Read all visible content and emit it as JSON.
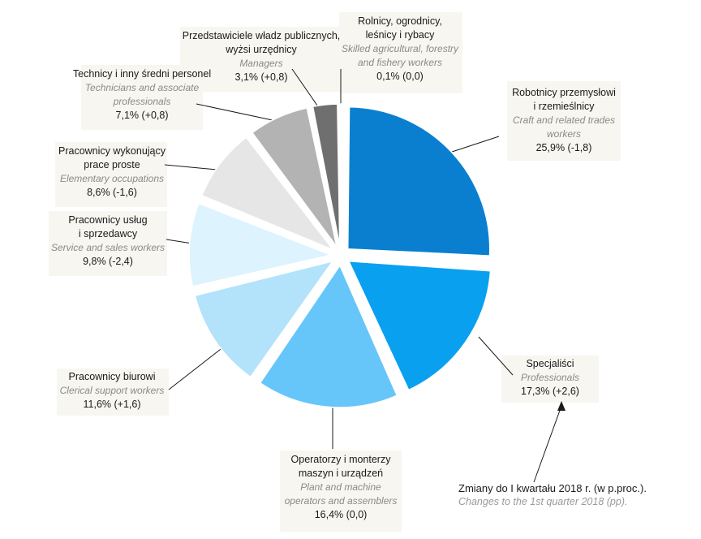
{
  "chart_data": {
    "type": "pie",
    "note": {
      "pl": "Zmiany do I kwartału 2018 r. (w p.proc.).",
      "en": "Changes to the  1st quarter 2018 (pp)."
    },
    "slices": [
      {
        "pl": [
          "Robotnicy przemysłowi",
          "i rzemieślnicy"
        ],
        "en": [
          "Craft and related trades",
          "workers"
        ],
        "value": 25.9,
        "label": "25,9% (-1,8)",
        "color": "#0a7fd0"
      },
      {
        "pl": [
          "Specjaliści"
        ],
        "en": [
          "Professionals"
        ],
        "value": 17.3,
        "label": "17,3% (+2,6)",
        "color": "#0aa0f0"
      },
      {
        "pl": [
          "Operatorzy i monterzy",
          "maszyn i urządzeń"
        ],
        "en": [
          "Plant and machine",
          "operators and assemblers"
        ],
        "value": 16.4,
        "label": "16,4% (0,0)",
        "color": "#66c6fa"
      },
      {
        "pl": [
          "Pracownicy biurowi"
        ],
        "en": [
          "Clerical support workers"
        ],
        "value": 11.6,
        "label": "11,6% (+1,6)",
        "color": "#b3e3fb"
      },
      {
        "pl": [
          "Pracownicy usług",
          "i sprzedawcy"
        ],
        "en": [
          "Service and sales workers"
        ],
        "value": 9.8,
        "label": "9,8% (-2,4)",
        "color": "#ddf3fd"
      },
      {
        "pl": [
          "Pracownicy wykonujący",
          "prace proste"
        ],
        "en": [
          "Elementary occupations"
        ],
        "value": 8.6,
        "label": "8,6% (-1,6)",
        "color": "#e6e6e6"
      },
      {
        "pl": [
          "Technicy i inny średni personel"
        ],
        "en": [
          "Technicians and associate",
          "professionals"
        ],
        "value": 7.1,
        "label": "7,1% (+0,8)",
        "color": "#b3b3b3"
      },
      {
        "pl": [
          "Przedstawiciele władz publicznych,",
          "wyżsi urzędnicy"
        ],
        "en": [
          "Managers"
        ],
        "value": 3.1,
        "label": "3,1% (+0,8)",
        "color": "#6f6f6f"
      },
      {
        "pl": [
          "Rolnicy, ogrodnicy,",
          "leśnicy i rybacy"
        ],
        "en": [
          "Skilled agricultural, forestry",
          "and fishery workers"
        ],
        "value": 0.1,
        "label": "0,1% (0,0)",
        "color": "#333333"
      }
    ]
  }
}
